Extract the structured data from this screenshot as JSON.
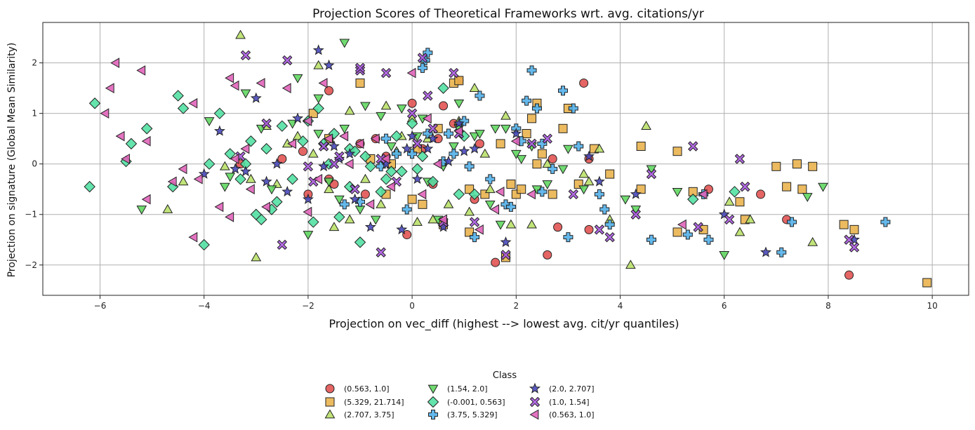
{
  "chart_data": {
    "type": "scatter",
    "title": "Projection Scores of Theoretical Frameworks wrt. avg. citations/yr",
    "xlabel": "Projection on vec_diff (highest --> lowest avg. cit/yr quantiles)",
    "ylabel": "Projection on signature (Global Mean Similarity)",
    "xlim": [
      -7.1,
      10.7
    ],
    "ylim": [
      -2.6,
      2.8
    ],
    "xticks": [
      -6,
      -4,
      -2,
      0,
      2,
      4,
      6,
      8,
      10
    ],
    "yticks": [
      -2,
      -1,
      0,
      1,
      2
    ],
    "xtick_labels": [
      "−6",
      "−4",
      "−2",
      "0",
      "2",
      "4",
      "6",
      "8",
      "10"
    ],
    "ytick_labels": [
      "−2",
      "−1",
      "0",
      "1",
      "2"
    ],
    "grid": true,
    "legend": {
      "title": "Class",
      "placement": "bottom-center",
      "columns": 4
    },
    "series": [
      {
        "name": "(0.563, 1.0]",
        "marker": "circle",
        "color": "#e0504f",
        "x": [
          3.3,
          0.9,
          0.6,
          -1.6,
          0.0,
          0.5,
          -0.7,
          -1.0,
          -2.1,
          -2.5,
          -3.3,
          -2.0,
          -1.5,
          -0.9,
          -0.5,
          0.2,
          0.4,
          0.8,
          1.3,
          1.2,
          3.4,
          3.4,
          2.7,
          2.6,
          2.8,
          5.7,
          6.7,
          7.2,
          8.4,
          -1.6,
          1.6,
          -0.1
        ],
        "y": [
          1.6,
          1.65,
          1.15,
          1.45,
          1.2,
          0.5,
          0.5,
          0.4,
          0.25,
          0.1,
          0.0,
          -0.6,
          -0.4,
          -0.6,
          0.15,
          0.3,
          -0.4,
          0.8,
          0.4,
          -0.7,
          0.1,
          -1.3,
          0.1,
          -1.8,
          -1.25,
          -0.5,
          -0.6,
          -1.1,
          -2.2,
          -0.3,
          -1.95,
          -1.4
        ]
      },
      {
        "name": "(5.329, 21.714]",
        "marker": "square",
        "color": "#e9b24a",
        "x": [
          -1.9,
          -1.6,
          -1.0,
          -0.8,
          -0.5,
          0.1,
          0.2,
          0.6,
          0.8,
          1.1,
          1.4,
          1.7,
          1.9,
          2.0,
          2.1,
          2.2,
          2.3,
          2.4,
          2.5,
          2.7,
          2.9,
          3.0,
          3.2,
          3.5,
          3.8,
          4.4,
          4.4,
          5.1,
          5.1,
          5.4,
          5.6,
          6.3,
          6.4,
          7.0,
          7.2,
          7.4,
          7.5,
          7.7,
          8.3,
          8.5,
          9.9,
          0.9,
          1.1,
          2.4,
          0.0,
          -0.4,
          0.5,
          1.8
        ],
        "y": [
          1.0,
          0.5,
          1.6,
          0.1,
          -0.6,
          0.3,
          -0.8,
          -1.2,
          1.6,
          -0.5,
          -0.6,
          0.4,
          -0.4,
          -0.6,
          -0.5,
          0.6,
          0.9,
          0.0,
          0.2,
          -0.6,
          0.7,
          1.1,
          -0.4,
          0.3,
          -0.2,
          -0.5,
          0.35,
          0.25,
          -1.35,
          -0.55,
          -1.3,
          -0.75,
          -1.1,
          -0.05,
          -0.45,
          0.0,
          -0.5,
          -0.05,
          -1.2,
          -1.3,
          -2.35,
          1.65,
          -1.35,
          1.2,
          -0.7,
          0.0,
          0.7,
          -1.85
        ]
      },
      {
        "name": "(2.707, 3.75]",
        "marker": "triangle-up",
        "color": "#b8e067",
        "x": [
          -3.3,
          -1.8,
          -1.2,
          -0.5,
          0.0,
          0.3,
          0.9,
          1.4,
          1.8,
          2.6,
          3.3,
          3.6,
          4.2,
          4.5,
          6.3,
          6.5,
          7.7,
          -4.7,
          -4.4,
          -3.0,
          -2.8,
          -2.2,
          -1.6,
          -1.5,
          -1.2,
          -0.9,
          -0.6,
          -0.3,
          0.1,
          0.4,
          0.7,
          1.1,
          1.5,
          1.9,
          2.3,
          3.4,
          3.8,
          6.1,
          -2.4,
          -2.6,
          -3.1,
          -3.6,
          -0.2,
          1.2,
          -1.9
        ],
        "y": [
          2.55,
          1.95,
          1.05,
          1.15,
          0.9,
          0.5,
          0.85,
          0.2,
          0.95,
          0.0,
          -0.2,
          0.3,
          -2.0,
          0.75,
          -1.35,
          -1.1,
          -1.55,
          -0.9,
          -0.35,
          -1.85,
          0.75,
          0.55,
          -0.5,
          -1.25,
          -1.1,
          -0.3,
          -0.8,
          0.25,
          -1.15,
          -1.1,
          -0.8,
          -0.95,
          -0.5,
          -1.2,
          -1.2,
          -0.35,
          -1.1,
          -0.75,
          0.4,
          -0.4,
          -0.3,
          -0.05,
          0.55,
          1.5,
          0.2
        ]
      },
      {
        "name": "(1.54, 2.0]",
        "marker": "triangle-down",
        "color": "#5cd65c",
        "x": [
          -1.3,
          -2.2,
          -3.2,
          -3.9,
          -2.9,
          -2.3,
          -1.8,
          -1.3,
          -0.9,
          -0.6,
          -0.2,
          0.2,
          0.6,
          0.9,
          1.2,
          1.6,
          1.8,
          2.1,
          2.3,
          2.6,
          2.9,
          3.0,
          3.3,
          4.1,
          4.3,
          4.6,
          5.1,
          6.0,
          7.6,
          7.9,
          -5.2,
          -3.6,
          -2.7,
          -2.0,
          -1.4,
          -1.0,
          -0.4,
          0.1,
          0.5,
          0.8,
          1.3,
          1.7,
          2.0,
          2.4,
          -3.5,
          -1.8,
          -0.7,
          0.3,
          -1.6,
          1.5,
          0.9
        ],
        "y": [
          2.4,
          1.7,
          1.4,
          0.85,
          0.7,
          0.8,
          1.3,
          0.7,
          1.15,
          0.95,
          1.1,
          0.9,
          -0.05,
          1.2,
          0.55,
          0.7,
          0.7,
          0.1,
          0.35,
          -0.4,
          -0.1,
          0.3,
          -0.5,
          -0.7,
          -0.9,
          -0.1,
          -0.55,
          -1.8,
          -0.65,
          -0.45,
          -0.9,
          -0.45,
          -0.5,
          -1.4,
          -0.7,
          -0.9,
          0.35,
          0.55,
          -1.1,
          0.35,
          0.6,
          -1.2,
          0.2,
          -0.5,
          -0.25,
          0.6,
          -1.1,
          -0.35,
          -0.35,
          -0.8,
          0.7
        ]
      },
      {
        "name": "(-0.001, 0.563]",
        "marker": "diamond",
        "color": "#4fe0a0",
        "x": [
          -6.2,
          -6.1,
          -5.5,
          -5.4,
          -5.1,
          -4.6,
          -4.5,
          -4.4,
          -4.0,
          -3.9,
          -3.7,
          -3.5,
          -3.3,
          -3.1,
          -2.9,
          -2.7,
          -2.5,
          -2.3,
          -2.1,
          -1.9,
          -1.7,
          -1.5,
          -1.4,
          -1.2,
          -1.0,
          -0.8,
          -0.6,
          -0.4,
          -0.2,
          0.0,
          0.2,
          0.4,
          0.6,
          0.9,
          1.0,
          1.2,
          5.4,
          6.2,
          -2.0,
          -1.8,
          -2.6,
          -2.8,
          -0.3,
          0.1,
          -1.2,
          -3.0,
          -3.2,
          -1.1,
          -0.9,
          -0.5,
          -1.6
        ],
        "y": [
          -0.45,
          1.2,
          0.05,
          0.4,
          0.7,
          -0.45,
          1.35,
          1.1,
          -1.6,
          0.0,
          1.0,
          0.2,
          -0.3,
          0.45,
          -1.1,
          -0.9,
          0.75,
          -0.3,
          0.45,
          -1.15,
          0.4,
          0.6,
          -1.05,
          0.3,
          -1.55,
          -0.05,
          -0.55,
          -0.15,
          -0.15,
          0.8,
          0.15,
          -0.35,
          1.5,
          -0.6,
          0.55,
          -0.6,
          -0.7,
          -0.55,
          0.85,
          1.1,
          -0.75,
          0.3,
          0.55,
          -0.1,
          -0.45,
          -1.0,
          0.0,
          0.25,
          0.15,
          -0.3,
          0.0
        ]
      },
      {
        "name": "(3.75, 5.329]",
        "marker": "plus",
        "color": "#4faee8",
        "x": [
          0.3,
          0.25,
          0.2,
          1.3,
          1.8,
          2.0,
          2.2,
          2.3,
          2.5,
          2.9,
          3.0,
          3.1,
          3.2,
          3.6,
          3.7,
          3.8,
          4.6,
          5.3,
          5.7,
          7.1,
          7.3,
          9.1,
          1.2,
          1.0,
          0.8,
          0.6,
          0.3,
          -0.1,
          -0.3,
          -0.6,
          -1.0,
          -1.3,
          1.9,
          2.1,
          2.5,
          2.7,
          1.1,
          1.5,
          0.0,
          0.7,
          -0.5,
          2.4,
          5.6
        ],
        "y": [
          2.2,
          2.05,
          1.9,
          1.35,
          -0.8,
          0.7,
          1.25,
          1.85,
          0.4,
          1.45,
          -1.45,
          1.1,
          0.35,
          -0.6,
          -0.9,
          -1.2,
          -1.5,
          -1.4,
          -1.5,
          -1.75,
          -1.15,
          -1.15,
          -1.45,
          0.85,
          0.2,
          0.05,
          0.6,
          -0.9,
          0.2,
          -0.05,
          -0.75,
          -0.8,
          -0.85,
          0.45,
          -0.55,
          -0.1,
          -0.05,
          -0.3,
          0.2,
          0.6,
          0.5,
          1.1,
          -0.6
        ]
      },
      {
        "name": "(2.0, 2.707]",
        "marker": "star",
        "color": "#4444bb",
        "x": [
          -1.8,
          -1.6,
          -3.0,
          -3.2,
          -3.7,
          -4.0,
          -2.4,
          -2.0,
          -1.5,
          -1.2,
          -0.8,
          -0.5,
          -0.2,
          0.0,
          0.3,
          0.6,
          0.9,
          1.2,
          1.8,
          2.0,
          3.4,
          3.6,
          4.3,
          6.0,
          6.8,
          8.5,
          -2.2,
          -1.7,
          -2.8,
          -0.1,
          0.4,
          0.7,
          1.0,
          -1.4,
          -2.6,
          -3.4,
          0.1,
          -1.1
        ],
        "y": [
          2.25,
          1.95,
          1.3,
          -0.15,
          0.65,
          -0.2,
          -0.55,
          -0.7,
          0.35,
          0.2,
          -1.25,
          0.0,
          -1.3,
          0.55,
          0.3,
          -1.25,
          0.8,
          0.3,
          -1.55,
          0.6,
          0.15,
          -0.35,
          -0.6,
          -1.0,
          -1.75,
          -1.5,
          0.9,
          -0.05,
          -0.35,
          0.3,
          0.5,
          0.05,
          0.25,
          0.1,
          0.0,
          -0.1,
          -0.3,
          -0.7
        ]
      },
      {
        "name": "(1.0, 1.54]",
        "marker": "x",
        "color": "#a855e0",
        "x": [
          -3.2,
          -2.4,
          -1.0,
          -0.5,
          0.0,
          0.3,
          0.2,
          -2.8,
          -1.7,
          -1.4,
          -1.0,
          -0.6,
          -0.3,
          0.1,
          0.6,
          0.9,
          1.2,
          2.3,
          2.6,
          3.1,
          3.6,
          3.8,
          4.3,
          4.6,
          5.4,
          5.5,
          6.1,
          6.3,
          6.4,
          8.4,
          8.5,
          -2.5,
          -0.6,
          0.8,
          1.8,
          -2.0,
          -1.1,
          0.4,
          -1.5,
          -3.3,
          -1.9
        ],
        "y": [
          2.15,
          2.05,
          1.85,
          1.8,
          1.0,
          1.35,
          2.1,
          0.8,
          0.35,
          0.15,
          1.9,
          0.1,
          -0.35,
          0.4,
          -1.15,
          0.6,
          -1.15,
          0.4,
          0.5,
          -0.6,
          -1.3,
          -1.45,
          -1.0,
          -0.2,
          0.35,
          -1.25,
          -1.1,
          0.1,
          -0.45,
          -1.5,
          -1.65,
          -1.6,
          -1.75,
          1.8,
          -1.8,
          -0.05,
          -0.5,
          0.7,
          0.0,
          0.15,
          -0.35
        ]
      },
      {
        "name": "(0.563, 1.0]",
        "marker": "triangle-left",
        "color": "#e060b8",
        "x": [
          -5.7,
          -5.9,
          -5.8,
          -5.6,
          -5.5,
          -5.2,
          -5.1,
          -4.4,
          -4.2,
          -3.5,
          -3.4,
          -2.9,
          -2.4,
          -2.0,
          -1.7,
          -1.3,
          -1.0,
          -0.5,
          0.0,
          0.3,
          0.6,
          0.9,
          1.3,
          1.7,
          2.0,
          2.3,
          -5.1,
          -4.6,
          -4.1,
          -3.7,
          -3.4,
          -3.2,
          -2.8,
          -2.3,
          -2.0,
          -1.6,
          -1.2,
          -0.8,
          -0.4,
          0.2,
          -3.5,
          -4.2,
          -3.1,
          -0.7,
          1.6,
          5.2,
          5.6,
          0.5,
          -1.8
        ],
        "y": [
          2.0,
          1.0,
          1.5,
          0.55,
          0.1,
          1.85,
          0.45,
          -0.1,
          1.2,
          1.7,
          1.55,
          1.6,
          1.5,
          0.85,
          1.6,
          0.55,
          0.4,
          0.1,
          1.8,
          0.9,
          -1.1,
          0.65,
          -1.3,
          -0.55,
          0.45,
          -0.6,
          -0.7,
          -0.35,
          -0.3,
          -0.85,
          0.1,
          0.3,
          -0.85,
          0.4,
          -0.95,
          0.5,
          0.0,
          -0.8,
          -0.45,
          -0.6,
          -1.05,
          -1.45,
          -0.5,
          0.5,
          -0.9,
          -1.2,
          -0.6,
          0.0,
          -0.3
        ]
      }
    ]
  }
}
